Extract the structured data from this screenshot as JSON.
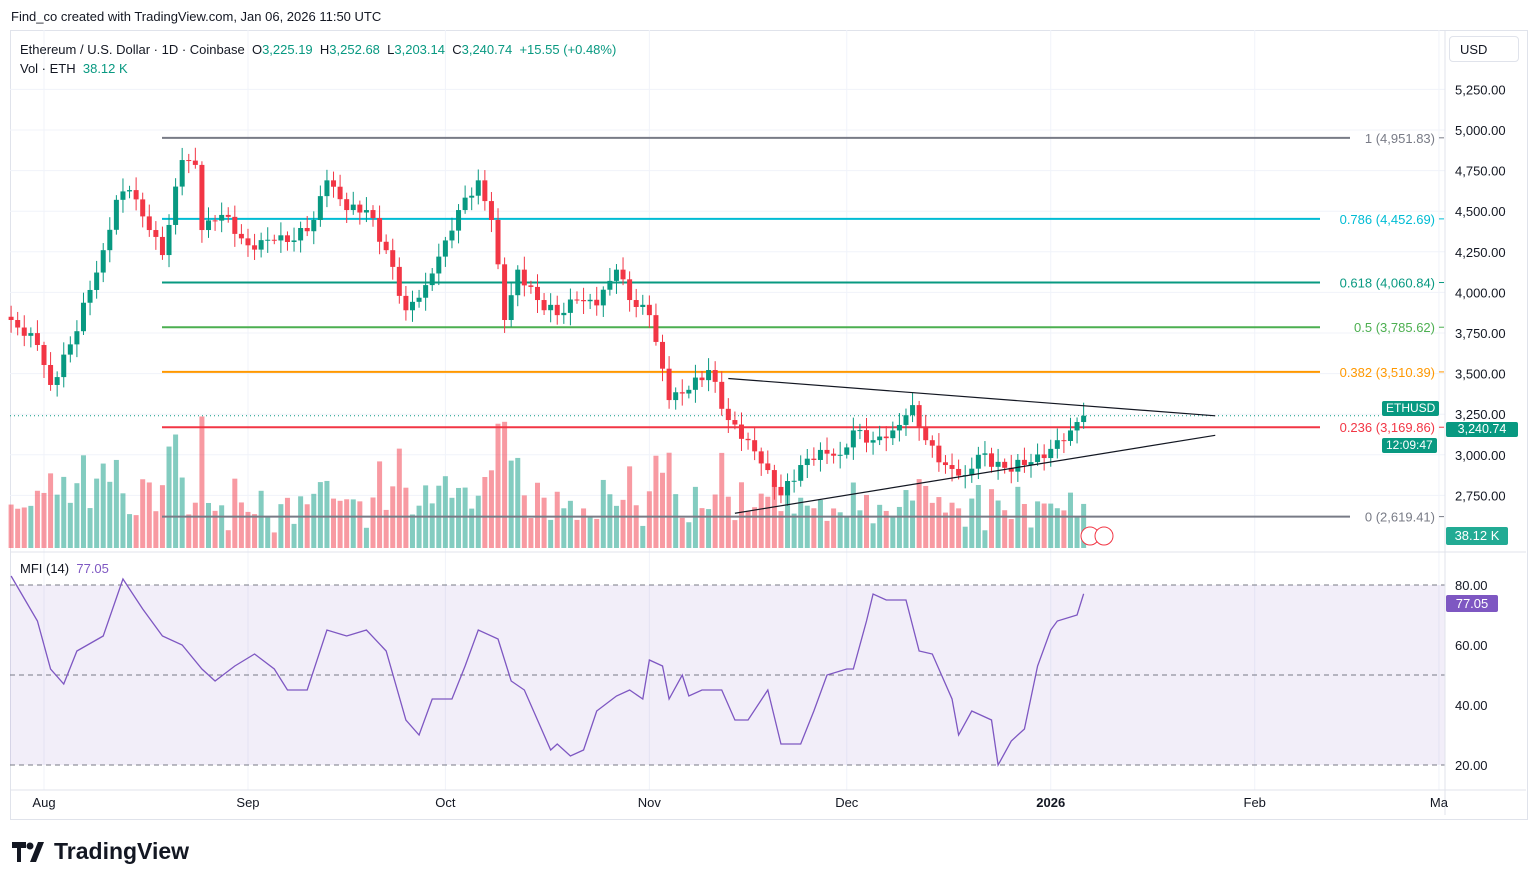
{
  "credit": "Find_co created with TradingView.com, Jan 06, 2026 11:50 UTC",
  "legend": {
    "symbol": "Ethereum / U.S. Dollar · 1D · Coinbase",
    "o_label": "O",
    "open": "3,225.19",
    "h_label": "H",
    "high": "3,252.68",
    "l_label": "L",
    "low": "3,203.14",
    "c_label": "C",
    "close": "3,240.74",
    "change": "+15.55 (+0.48%)",
    "vol_label": "Vol · ETH",
    "vol": "38.12 K"
  },
  "currency": "USD",
  "price_tag": {
    "symbol": "ETHUSD",
    "price": "3,240.74",
    "countdown": "12:09:47"
  },
  "vol_tag": "38.12 K",
  "mfi": {
    "label": "MFI (14)",
    "value": "77.05"
  },
  "brand": "TradingView",
  "colors": {
    "up": "#089981",
    "down": "#f23645",
    "mfi": "#7e57c2"
  },
  "chart_data": {
    "type": "candlestick",
    "title": "Ethereum / U.S. Dollar · 1D · Coinbase",
    "ylim": [
      2450,
      5420
    ],
    "price_ticks": [
      "5,250.00",
      "5,000.00",
      "4,750.00",
      "4,500.00",
      "4,250.00",
      "4,000.00",
      "3,750.00",
      "3,500.00",
      "3,250.00",
      "3,000.00",
      "2,750.00"
    ],
    "price_tick_values": [
      5250,
      5000,
      4750,
      4500,
      4250,
      4000,
      3750,
      3500,
      3250,
      3000,
      2750
    ],
    "x_ticks": [
      {
        "label": "Aug",
        "day": 0
      },
      {
        "label": "Sep",
        "day": 31
      },
      {
        "label": "Oct",
        "day": 61
      },
      {
        "label": "Nov",
        "day": 92
      },
      {
        "label": "Dec",
        "day": 122
      },
      {
        "label": "2026",
        "day": 153,
        "bold": true
      },
      {
        "label": "Feb",
        "day": 184
      },
      {
        "label": "Ma",
        "day": 212
      }
    ],
    "x_unit": "days since Aug 1, 2025",
    "close_anchors": [
      [
        -5,
        3830
      ],
      [
        -1,
        3676
      ],
      [
        1,
        3430
      ],
      [
        4,
        3680
      ],
      [
        7,
        4015
      ],
      [
        9,
        4260
      ],
      [
        11,
        4570
      ],
      [
        13,
        4630
      ],
      [
        16,
        4384
      ],
      [
        18,
        4230
      ],
      [
        21,
        4815
      ],
      [
        23,
        4785
      ],
      [
        24,
        4384
      ],
      [
        27,
        4477
      ],
      [
        31,
        4290
      ],
      [
        35,
        4320
      ],
      [
        38,
        4320
      ],
      [
        41,
        4446
      ],
      [
        43,
        4690
      ],
      [
        46,
        4507
      ],
      [
        49,
        4507
      ],
      [
        52,
        4260
      ],
      [
        55,
        3890
      ],
      [
        58,
        4045
      ],
      [
        61,
        4320
      ],
      [
        63,
        4507
      ],
      [
        66,
        4690
      ],
      [
        68,
        4446
      ],
      [
        70,
        3830
      ],
      [
        72,
        4140
      ],
      [
        75,
        3953
      ],
      [
        78,
        3860
      ],
      [
        81,
        3953
      ],
      [
        84,
        3920
      ],
      [
        87,
        4140
      ],
      [
        89,
        3953
      ],
      [
        92,
        3860
      ],
      [
        95,
        3337
      ],
      [
        98,
        3400
      ],
      [
        101,
        3522
      ],
      [
        104,
        3214
      ],
      [
        107,
        3090
      ],
      [
        110,
        2906
      ],
      [
        112,
        2750
      ],
      [
        115,
        2937
      ],
      [
        118,
        3030
      ],
      [
        121,
        3000
      ],
      [
        123,
        3150
      ],
      [
        126,
        3090
      ],
      [
        129,
        3150
      ],
      [
        132,
        3306
      ],
      [
        134,
        3090
      ],
      [
        137,
        2937
      ],
      [
        140,
        2875
      ],
      [
        142,
        3000
      ],
      [
        146,
        2920
      ],
      [
        150,
        2955
      ],
      [
        152,
        2980
      ],
      [
        154,
        3090
      ],
      [
        156,
        3150
      ],
      [
        158,
        3240.74
      ]
    ],
    "fib_levels": [
      {
        "label": "1 (4,951.83)",
        "value": 4951.83,
        "color": "#787b86"
      },
      {
        "label": "0.786 (4,452.69)",
        "value": 4452.69,
        "color": "#00bcd4"
      },
      {
        "label": "0.618 (4,060.84)",
        "value": 4060.84,
        "color": "#089981"
      },
      {
        "label": "0.5 (3,785.62)",
        "value": 3785.62,
        "color": "#4caf50"
      },
      {
        "label": "0.382 (3,510.39)",
        "value": 3510.39,
        "color": "#ff9800"
      },
      {
        "label": "0.236 (3,169.86)",
        "value": 3169.86,
        "color": "#f23645"
      },
      {
        "label": "0 (2,619.41)",
        "value": 2619.41,
        "color": "#787b86"
      }
    ],
    "triangle": {
      "upper": [
        [
          104,
          3470
        ],
        [
          178,
          3240
        ]
      ],
      "lower": [
        [
          105,
          2640
        ],
        [
          178,
          3120
        ]
      ]
    },
    "mfi_ticks": [
      "80.00",
      "60.00",
      "40.00",
      "20.00"
    ],
    "mfi_tick_values": [
      80,
      60,
      40,
      20
    ],
    "mfi_series": [
      [
        -5,
        83
      ],
      [
        -1,
        68
      ],
      [
        1,
        52
      ],
      [
        3,
        47
      ],
      [
        5,
        58
      ],
      [
        9,
        63
      ],
      [
        12,
        82
      ],
      [
        15,
        72
      ],
      [
        18,
        63
      ],
      [
        21,
        60
      ],
      [
        24,
        52
      ],
      [
        26,
        48
      ],
      [
        29,
        53
      ],
      [
        32,
        57
      ],
      [
        35,
        52
      ],
      [
        37,
        45
      ],
      [
        40,
        45
      ],
      [
        43,
        65
      ],
      [
        46,
        63
      ],
      [
        49,
        65
      ],
      [
        52,
        58
      ],
      [
        55,
        35
      ],
      [
        57,
        30
      ],
      [
        59,
        42
      ],
      [
        62,
        42
      ],
      [
        64,
        53
      ],
      [
        66,
        65
      ],
      [
        69,
        62
      ],
      [
        71,
        48
      ],
      [
        73,
        45
      ],
      [
        75,
        35
      ],
      [
        77,
        25
      ],
      [
        78,
        27
      ],
      [
        80,
        23
      ],
      [
        82,
        25
      ],
      [
        84,
        38
      ],
      [
        87,
        43
      ],
      [
        89,
        45
      ],
      [
        91,
        42
      ],
      [
        92,
        55
      ],
      [
        94,
        53
      ],
      [
        95,
        42
      ],
      [
        97,
        50
      ],
      [
        98,
        43
      ],
      [
        100,
        45
      ],
      [
        103,
        45
      ],
      [
        105,
        35
      ],
      [
        107,
        35
      ],
      [
        110,
        45
      ],
      [
        112,
        27
      ],
      [
        115,
        27
      ],
      [
        117,
        38
      ],
      [
        119,
        50
      ],
      [
        122,
        52
      ],
      [
        123,
        52
      ],
      [
        125,
        68
      ],
      [
        126,
        77
      ],
      [
        128,
        75
      ],
      [
        131,
        75
      ],
      [
        133,
        58
      ],
      [
        135,
        57
      ],
      [
        138,
        42
      ],
      [
        139,
        30
      ],
      [
        141,
        38
      ],
      [
        144,
        35
      ],
      [
        145,
        20
      ],
      [
        147,
        28
      ],
      [
        149,
        32
      ],
      [
        151,
        53
      ],
      [
        153,
        65
      ],
      [
        154,
        68
      ],
      [
        157,
        70
      ],
      [
        158,
        77.05
      ]
    ]
  }
}
